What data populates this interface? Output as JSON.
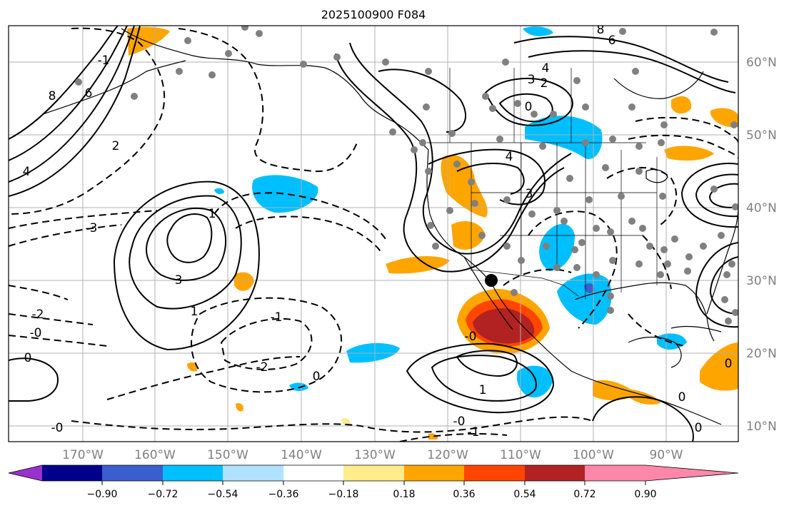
{
  "title": "2025100900 F084",
  "lat_labels": [
    "60°N",
    "50°N",
    "40°N",
    "30°N",
    "20°N",
    "10°N"
  ],
  "lon_labels": [
    "170°W",
    "160°W",
    "150°W",
    "140°W",
    "130°W",
    "120°W",
    "110°W",
    "100°W",
    "90°W"
  ],
  "colorbar": {
    "tick_labels": [
      "−0.90",
      "−0.72",
      "−0.54",
      "−0.36",
      "−0.18",
      "0.18",
      "0.36",
      "0.54",
      "0.72",
      "0.90"
    ],
    "colors": [
      "#9932cc",
      "#00008b",
      "#3a5fcd",
      "#00bfff",
      "#b0e2ff",
      "#ffffff",
      "#ffec8b",
      "#ffa500",
      "#ff4500",
      "#b22222",
      "#ff88aa"
    ]
  },
  "contour_labels": [
    {
      "text": "8"
    },
    {
      "text": "6"
    },
    {
      "text": "4"
    },
    {
      "text": "2"
    },
    {
      "text": "1"
    },
    {
      "text": "0"
    },
    {
      "text": "-2"
    },
    {
      "text": "-0"
    },
    {
      "text": "-3"
    },
    {
      "text": "3"
    },
    {
      "text": "1"
    },
    {
      "text": "-1"
    },
    {
      "text": "-2"
    },
    {
      "text": "0"
    },
    {
      "text": "-0"
    },
    {
      "text": "4"
    },
    {
      "text": "3"
    },
    {
      "text": "2"
    },
    {
      "text": "0"
    },
    {
      "text": "1"
    },
    {
      "text": "-0"
    },
    {
      "text": "-1"
    },
    {
      "text": "8"
    },
    {
      "text": "6"
    },
    {
      "text": "4"
    },
    {
      "text": "3"
    },
    {
      "text": "-0"
    },
    {
      "text": "0"
    },
    {
      "text": "0"
    },
    {
      "text": "0"
    },
    {
      "text": "-1"
    }
  ]
}
